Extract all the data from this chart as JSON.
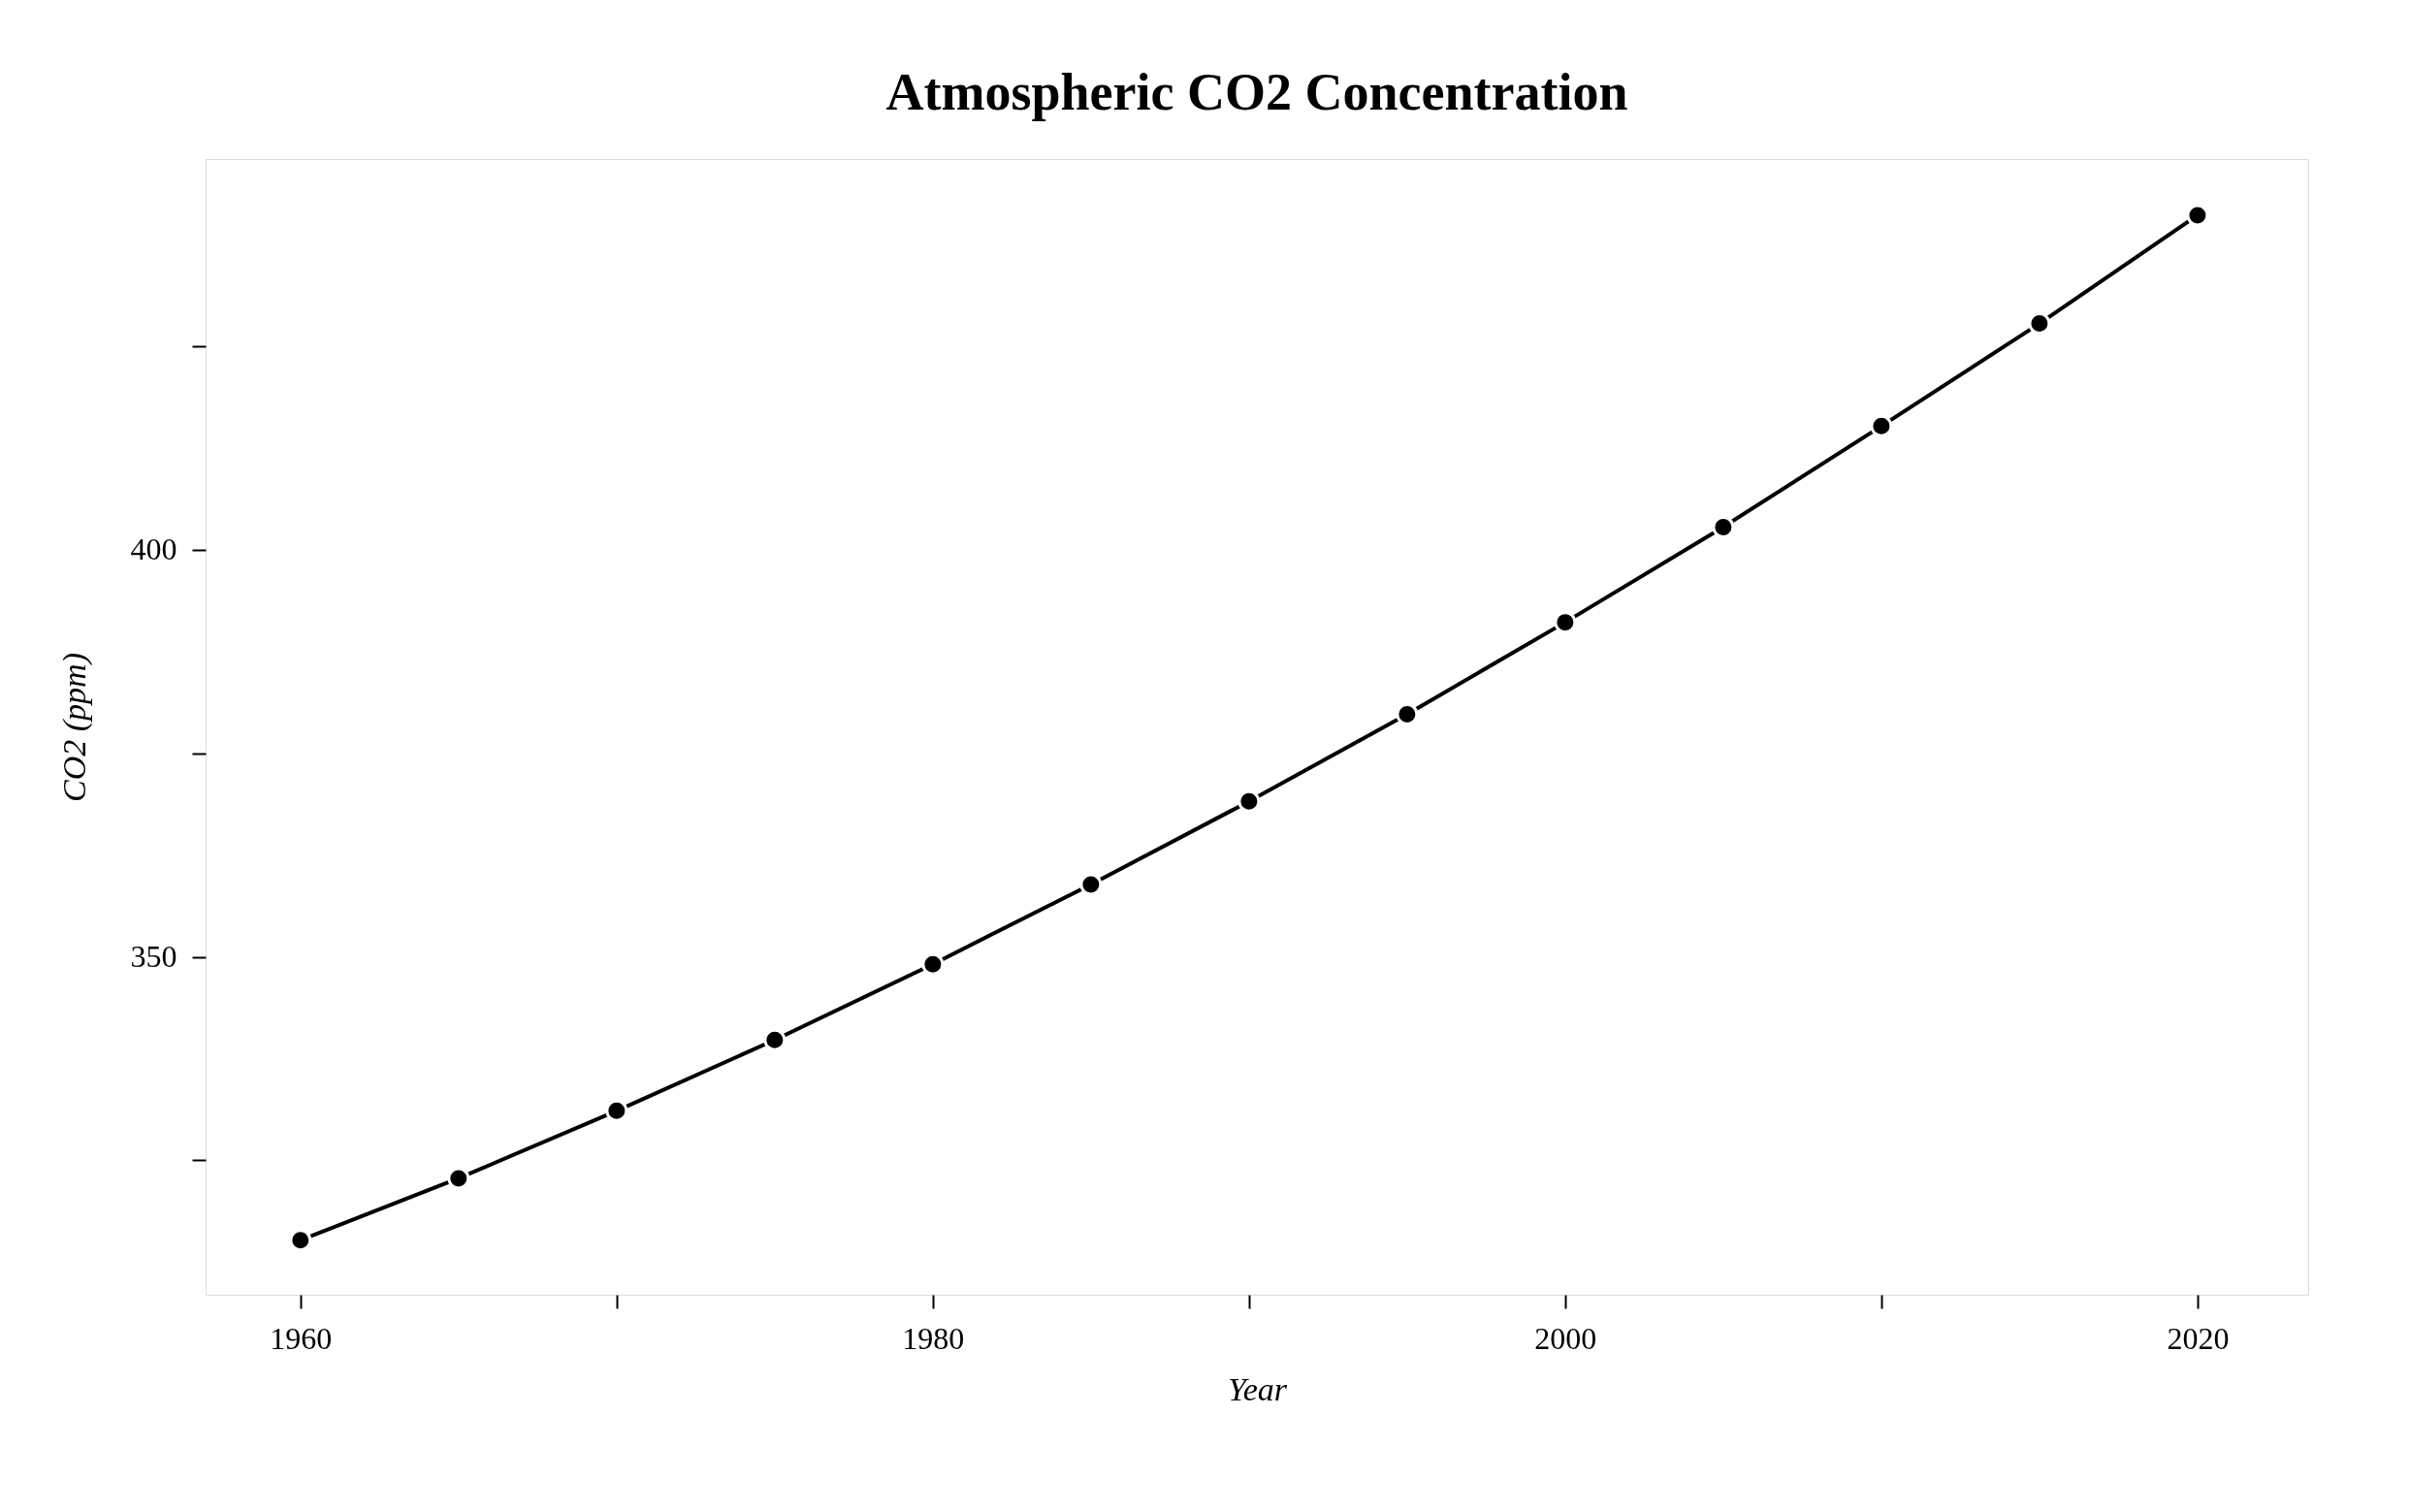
{
  "chart_data": {
    "type": "line",
    "title": "Atmospheric CO2 Concentration",
    "xlabel": "Year",
    "ylabel": "CO2 (ppm)",
    "x": [
      1960,
      1965,
      1970,
      1975,
      1980,
      1985,
      1990,
      1995,
      2000,
      2005,
      2010,
      2015,
      2020
    ],
    "series": [
      {
        "color": "#000000",
        "values": [
          315.2,
          322.8,
          331.1,
          339.8,
          349.1,
          358.9,
          369.1,
          379.8,
          391.1,
          402.8,
          415.2,
          427.8,
          441.1
        ]
      }
    ],
    "xlim": [
      1957,
      2023.5
    ],
    "ylim": [
      308.5,
      448
    ],
    "xticks": [
      1960,
      {
        "value": 1970,
        "label": null
      },
      1980,
      {
        "value": 1990,
        "label": null
      },
      2000,
      {
        "value": 2010,
        "label": null
      },
      2020
    ],
    "yticks": [
      {
        "value": 325,
        "label": null
      },
      350,
      {
        "value": 375,
        "label": null
      },
      400,
      {
        "value": 425,
        "label": null
      }
    ],
    "grid": false,
    "marker": "circle",
    "line_style": "solid"
  }
}
